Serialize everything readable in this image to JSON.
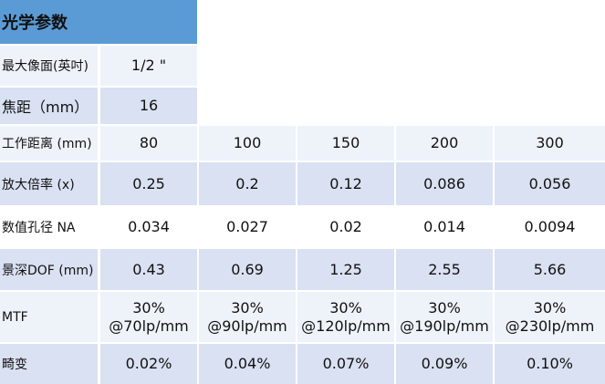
{
  "title": "光学参数",
  "rows": [
    {
      "label": "最大像面(英吋)",
      "values": [
        "1/2 \""
      ]
    },
    {
      "label": "焦距（mm）",
      "values": [
        "16"
      ]
    },
    {
      "label": "工作距离 (mm)",
      "values": [
        "80",
        "100",
        "150",
        "200",
        "300"
      ]
    },
    {
      "label": "放大倍率 (x)",
      "values": [
        "0.25",
        "0.2",
        "0.12",
        "0.086",
        "0.056"
      ]
    },
    {
      "label": "数值孔径 NA",
      "values": [
        "0.034",
        "0.027",
        "0.02",
        "0.014",
        "0.0094"
      ]
    },
    {
      "label": "景深DOF (mm)",
      "values": [
        "0.43",
        "0.69",
        "1.25",
        "2.55",
        "5.66"
      ]
    },
    {
      "label": "MTF",
      "values": [
        {
          "l1": "30%",
          "l2": "@70lp/mm"
        },
        {
          "l1": "30%",
          "l2": "@90lp/mm"
        },
        {
          "l1": "30%",
          "l2": "@120lp/mm"
        },
        {
          "l1": "30%",
          "l2": "@190lp/mm"
        },
        {
          "l1": "30%",
          "l2": "@230lp/mm"
        }
      ]
    },
    {
      "label": "畸变",
      "values": [
        "0.02%",
        "0.04%",
        "0.07%",
        "0.09%",
        "0.10%"
      ]
    }
  ],
  "colors": {
    "header": "#5b9bd5",
    "shade": "#d9e1f2",
    "light": "#eef3fa"
  }
}
